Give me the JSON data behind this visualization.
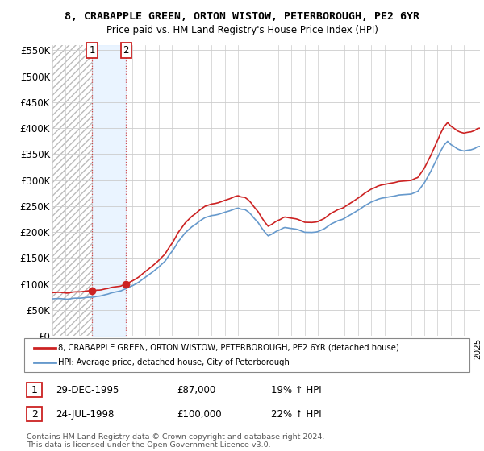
{
  "title": "8, CRABAPPLE GREEN, ORTON WISTOW, PETERBOROUGH, PE2 6YR",
  "subtitle": "Price paid vs. HM Land Registry's House Price Index (HPI)",
  "ylim": [
    0,
    560000
  ],
  "yticks": [
    0,
    50000,
    100000,
    150000,
    200000,
    250000,
    300000,
    350000,
    400000,
    450000,
    500000,
    550000
  ],
  "ytick_labels": [
    "£0",
    "£50K",
    "£100K",
    "£150K",
    "£200K",
    "£250K",
    "£300K",
    "£350K",
    "£400K",
    "£450K",
    "£500K",
    "£550K"
  ],
  "hpi_color": "#6699cc",
  "price_color": "#cc2222",
  "marker_color": "#cc2222",
  "background_color": "#ffffff",
  "sale1_x": 1995.99,
  "sale1_y": 87000,
  "sale2_x": 1998.55,
  "sale2_y": 100000,
  "legend_line1": "8, CRABAPPLE GREEN, ORTON WISTOW, PETERBOROUGH, PE2 6YR (detached house)",
  "legend_line2": "HPI: Average price, detached house, City of Peterborough",
  "sale1_date": "29-DEC-1995",
  "sale1_price": "£87,000",
  "sale1_hpi": "19% ↑ HPI",
  "sale2_date": "24-JUL-1998",
  "sale2_price": "£100,000",
  "sale2_hpi": "22% ↑ HPI",
  "footnote": "Contains HM Land Registry data © Crown copyright and database right 2024.\nThis data is licensed under the Open Government Licence v3.0.",
  "xmin": 1993.0,
  "xmax": 2025.2
}
